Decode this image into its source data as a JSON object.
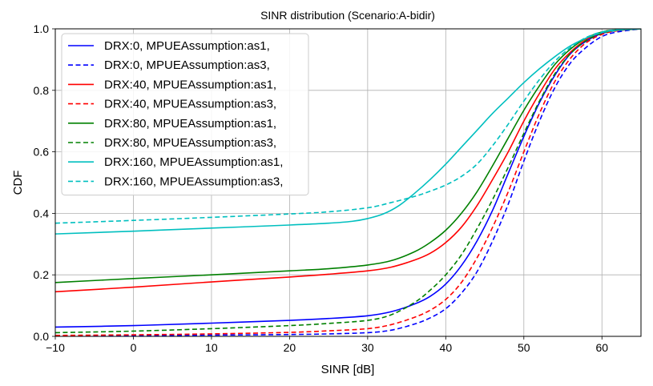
{
  "chart_data": {
    "type": "line",
    "title": "SINR distribution (Scenario:A-bidir)",
    "xlabel": "SINR [dB]",
    "ylabel": "CDF",
    "xlim": [
      -10,
      65
    ],
    "ylim": [
      0,
      1
    ],
    "xticks": [
      -10,
      0,
      10,
      20,
      30,
      40,
      50,
      60
    ],
    "xtick_labels": [
      "−10",
      "0",
      "10",
      "20",
      "30",
      "40",
      "50",
      "60"
    ],
    "yticks": [
      0,
      0.2,
      0.4,
      0.6,
      0.8,
      1.0
    ],
    "ytick_labels": [
      "0.0",
      "0.2",
      "0.4",
      "0.6",
      "0.8",
      "1.0"
    ],
    "grid": true,
    "legend_position": "upper-left",
    "series": [
      {
        "name": "DRX:0, MPUEAssumption:as1,",
        "color": "#0000ff",
        "dash": "solid",
        "x": [
          -10,
          0,
          10,
          20,
          25,
          30,
          33,
          36,
          38,
          40,
          42,
          44,
          46,
          48,
          50,
          52,
          54,
          56,
          58,
          60,
          62,
          65
        ],
        "y": [
          0.03,
          0.035,
          0.043,
          0.052,
          0.058,
          0.067,
          0.08,
          0.105,
          0.13,
          0.17,
          0.23,
          0.31,
          0.41,
          0.53,
          0.65,
          0.76,
          0.85,
          0.92,
          0.96,
          0.985,
          0.995,
          1.0
        ]
      },
      {
        "name": "DRX:0, MPUEAssumption:as3,",
        "color": "#0000ff",
        "dash": "dashed",
        "x": [
          -10,
          0,
          10,
          20,
          25,
          30,
          33,
          36,
          38,
          40,
          42,
          44,
          46,
          48,
          50,
          52,
          54,
          56,
          58,
          60,
          62,
          65
        ],
        "y": [
          0.002,
          0.003,
          0.004,
          0.006,
          0.008,
          0.012,
          0.02,
          0.04,
          0.06,
          0.09,
          0.14,
          0.21,
          0.31,
          0.43,
          0.57,
          0.7,
          0.81,
          0.89,
          0.94,
          0.975,
          0.99,
          1.0
        ]
      },
      {
        "name": "DRX:40, MPUEAssumption:as1,",
        "color": "#ff0000",
        "dash": "solid",
        "x": [
          -10,
          0,
          10,
          20,
          25,
          30,
          33,
          36,
          38,
          40,
          42,
          44,
          46,
          48,
          50,
          52,
          54,
          56,
          58,
          60,
          62,
          65
        ],
        "y": [
          0.145,
          0.16,
          0.177,
          0.193,
          0.202,
          0.213,
          0.225,
          0.248,
          0.27,
          0.305,
          0.355,
          0.425,
          0.51,
          0.6,
          0.7,
          0.79,
          0.87,
          0.925,
          0.965,
          0.988,
          0.996,
          1.0
        ]
      },
      {
        "name": "DRX:40, MPUEAssumption:as3,",
        "color": "#ff0000",
        "dash": "dashed",
        "x": [
          -10,
          0,
          10,
          20,
          25,
          30,
          33,
          36,
          38,
          40,
          42,
          44,
          46,
          48,
          50,
          52,
          54,
          56,
          58,
          60,
          62,
          65
        ],
        "y": [
          0.003,
          0.005,
          0.008,
          0.013,
          0.018,
          0.025,
          0.038,
          0.062,
          0.085,
          0.12,
          0.175,
          0.255,
          0.355,
          0.47,
          0.6,
          0.725,
          0.83,
          0.905,
          0.955,
          0.982,
          0.994,
          1.0
        ]
      },
      {
        "name": "DRX:80, MPUEAssumption:as1,",
        "color": "#008000",
        "dash": "solid",
        "x": [
          -10,
          0,
          10,
          20,
          25,
          30,
          33,
          36,
          38,
          40,
          42,
          44,
          46,
          48,
          50,
          52,
          54,
          56,
          58,
          60,
          62,
          65
        ],
        "y": [
          0.175,
          0.188,
          0.2,
          0.213,
          0.22,
          0.232,
          0.246,
          0.275,
          0.305,
          0.345,
          0.4,
          0.47,
          0.555,
          0.645,
          0.735,
          0.815,
          0.885,
          0.935,
          0.97,
          0.99,
          0.997,
          1.0
        ]
      },
      {
        "name": "DRX:80, MPUEAssumption:as3,",
        "color": "#008000",
        "dash": "dashed",
        "x": [
          -10,
          0,
          10,
          20,
          25,
          30,
          33,
          36,
          38,
          40,
          42,
          44,
          46,
          48,
          50,
          52,
          54,
          56,
          58,
          60,
          62,
          65
        ],
        "y": [
          0.012,
          0.017,
          0.025,
          0.035,
          0.042,
          0.052,
          0.07,
          0.11,
          0.15,
          0.2,
          0.265,
          0.35,
          0.445,
          0.55,
          0.66,
          0.765,
          0.855,
          0.92,
          0.962,
          0.986,
          0.995,
          1.0
        ]
      },
      {
        "name": "DRX:160, MPUEAssumption:as1,",
        "color": "#00bfbf",
        "dash": "solid",
        "x": [
          -10,
          0,
          10,
          20,
          25,
          28,
          30,
          32,
          34,
          36,
          38,
          40,
          42,
          44,
          46,
          48,
          50,
          52,
          54,
          56,
          58,
          60,
          62,
          65
        ],
        "y": [
          0.333,
          0.342,
          0.352,
          0.362,
          0.368,
          0.374,
          0.383,
          0.398,
          0.425,
          0.465,
          0.51,
          0.56,
          0.615,
          0.67,
          0.725,
          0.775,
          0.825,
          0.87,
          0.91,
          0.945,
          0.97,
          0.988,
          0.996,
          1.0
        ]
      },
      {
        "name": "DRX:160, MPUEAssumption:as3,",
        "color": "#00bfbf",
        "dash": "dashed",
        "x": [
          -10,
          0,
          10,
          20,
          25,
          30,
          33,
          36,
          38,
          40,
          42,
          44,
          46,
          48,
          50,
          52,
          54,
          56,
          58,
          60,
          62,
          65
        ],
        "y": [
          0.368,
          0.377,
          0.387,
          0.398,
          0.405,
          0.418,
          0.435,
          0.455,
          0.472,
          0.492,
          0.52,
          0.56,
          0.62,
          0.69,
          0.765,
          0.835,
          0.895,
          0.94,
          0.972,
          0.99,
          0.997,
          1.0
        ]
      }
    ]
  }
}
